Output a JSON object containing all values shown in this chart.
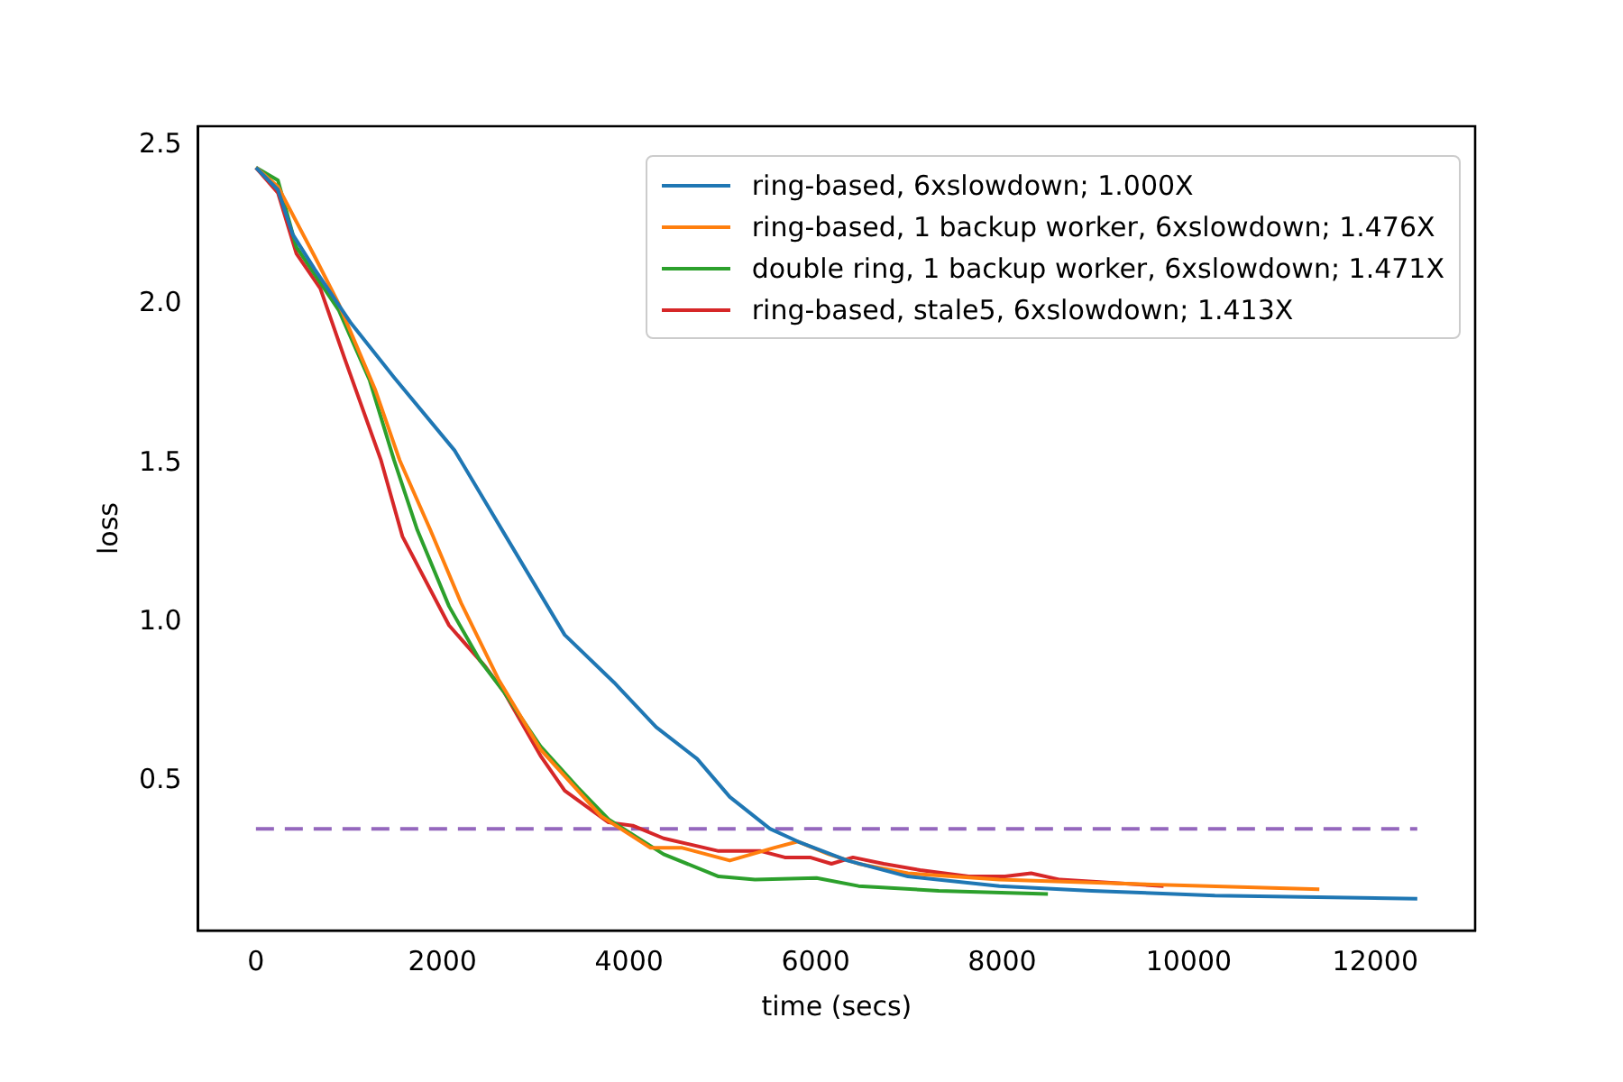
{
  "chart_data": {
    "type": "line",
    "xlabel": "time (secs)",
    "ylabel": "loss",
    "xlim": [
      -620,
      13070
    ],
    "xticks": [
      0,
      2000,
      4000,
      6000,
      8000,
      10000,
      12000
    ],
    "ylim": [
      0.03,
      2.56
    ],
    "yticks": [
      0.5,
      {
        "value": 1,
        "label": "1.0"
      },
      1.5,
      {
        "value": 2,
        "label": "2.0"
      },
      2.5
    ],
    "grid": false,
    "legend": "top right",
    "marker": "none",
    "line_style": "solid",
    "series": [
      {
        "name": "ring-based, 6xslowdown; 1.000X",
        "color": "#1f77b4",
        "x": [
          0,
          236,
          394,
          630,
          1020,
          1480,
          2130,
          2720,
          3310,
          3840,
          4290,
          4730,
          5080,
          5510,
          5810,
          6340,
          6990,
          7970,
          8960,
          10280,
          12450
        ],
        "values": [
          2.43,
          2.36,
          2.22,
          2.11,
          1.94,
          1.77,
          1.54,
          1.25,
          0.96,
          0.81,
          0.67,
          0.57,
          0.45,
          0.35,
          0.31,
          0.25,
          0.2,
          0.17,
          0.155,
          0.14,
          0.13
        ]
      },
      {
        "name": "ring-based, 1 backup worker, 6xslowdown; 1.476X",
        "color": "#ff7f0e",
        "x": [
          0,
          236,
          630,
          890,
          1280,
          1540,
          1870,
          2200,
          2600,
          3050,
          3700,
          4230,
          4570,
          5080,
          5550,
          5810,
          6140,
          6460,
          6990,
          7970,
          9610,
          11400
        ],
        "values": [
          2.43,
          2.37,
          2.15,
          2.0,
          1.73,
          1.51,
          1.29,
          1.06,
          0.82,
          0.6,
          0.39,
          0.29,
          0.29,
          0.25,
          0.29,
          0.31,
          0.27,
          0.24,
          0.21,
          0.19,
          0.175,
          0.16
        ]
      },
      {
        "name": "double ring, 1 backup worker, 6xslowdown; 1.471X",
        "color": "#2ca02c",
        "x": [
          0,
          236,
          433,
          890,
          1220,
          1480,
          1730,
          2070,
          2400,
          2660,
          3050,
          3450,
          3780,
          4370,
          4960,
          5350,
          6010,
          6460,
          7320,
          8490
        ],
        "values": [
          2.43,
          2.39,
          2.18,
          1.98,
          1.76,
          1.51,
          1.29,
          1.05,
          0.88,
          0.78,
          0.61,
          0.48,
          0.38,
          0.27,
          0.2,
          0.19,
          0.195,
          0.17,
          0.155,
          0.145
        ]
      },
      {
        "name": "ring-based, stale5, 6xslowdown; 1.413X",
        "color": "#d62728",
        "x": [
          0,
          236,
          433,
          690,
          950,
          1340,
          1570,
          2070,
          2460,
          2660,
          3050,
          3310,
          3780,
          4040,
          4370,
          4960,
          5410,
          5670,
          5940,
          6170,
          6400,
          6730,
          7120,
          7640,
          8030,
          8310,
          8620,
          9730
        ],
        "values": [
          2.43,
          2.35,
          2.16,
          2.05,
          1.83,
          1.51,
          1.27,
          0.99,
          0.86,
          0.78,
          0.58,
          0.47,
          0.37,
          0.36,
          0.32,
          0.28,
          0.28,
          0.26,
          0.26,
          0.24,
          0.26,
          0.24,
          0.22,
          0.2,
          0.2,
          0.21,
          0.19,
          0.17
        ]
      },
      {
        "color": "#9467bd",
        "line_style": "dashed",
        "x": [
          0,
          12450
        ],
        "values": [
          0.35,
          0.35
        ]
      }
    ]
  }
}
